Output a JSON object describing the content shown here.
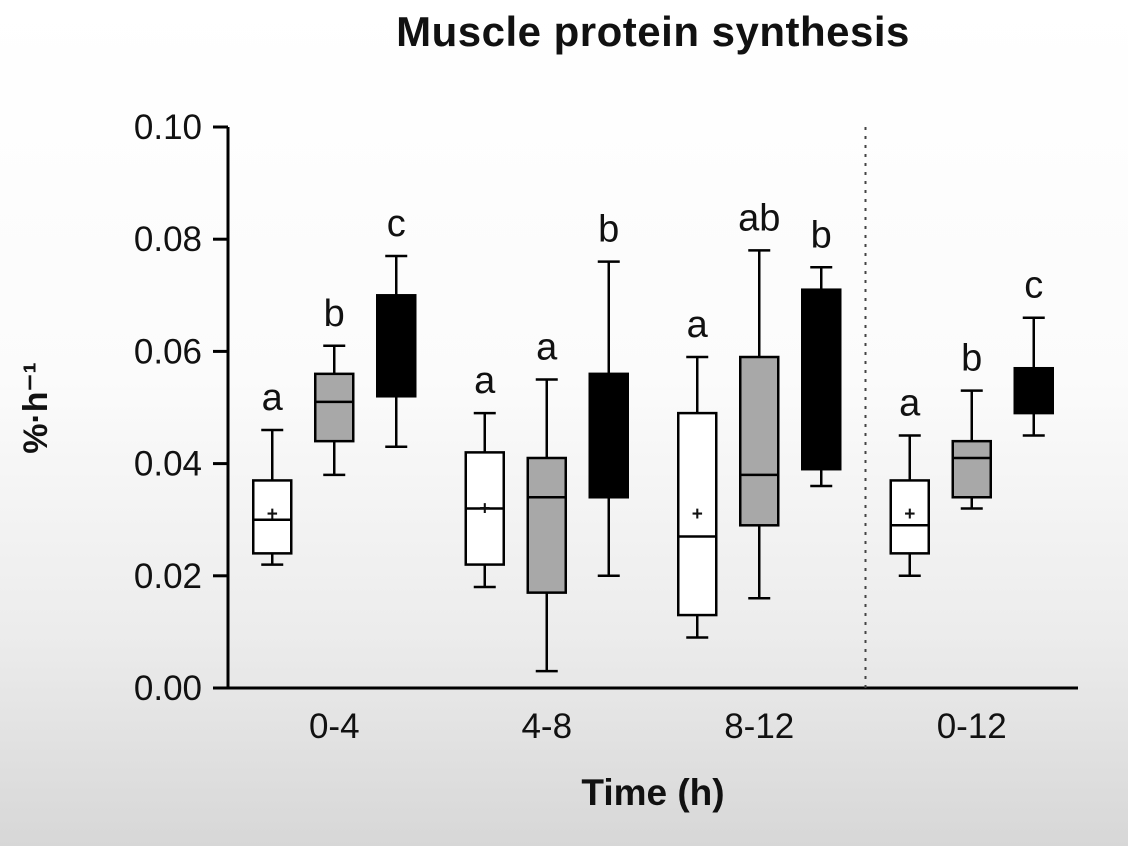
{
  "chart_data": {
    "type": "boxplot",
    "title": "Muscle protein synthesis",
    "xlabel": "Time (h)",
    "ylabel": "%·h⁻¹",
    "ylim": [
      0,
      0.1
    ],
    "yticks": [
      "0.00",
      "0.02",
      "0.04",
      "0.06",
      "0.08",
      "0.10"
    ],
    "categories": [
      "0-4",
      "4-8",
      "8-12",
      "0-12"
    ],
    "separator_after_category_index": 2,
    "grid": false,
    "legend": "none",
    "series": [
      {
        "name": "white-box",
        "fill": "#ffffff",
        "boxes": [
          {
            "category": "0-4",
            "low": 0.022,
            "q1": 0.024,
            "median": 0.03,
            "q3": 0.037,
            "high": 0.046,
            "mean": 0.031,
            "label": "a"
          },
          {
            "category": "4-8",
            "low": 0.018,
            "q1": 0.022,
            "median": 0.032,
            "q3": 0.042,
            "high": 0.049,
            "mean": 0.032,
            "label": "a"
          },
          {
            "category": "8-12",
            "low": 0.009,
            "q1": 0.013,
            "median": 0.027,
            "q3": 0.049,
            "high": 0.059,
            "mean": 0.031,
            "label": "a"
          },
          {
            "category": "0-12",
            "low": 0.02,
            "q1": 0.024,
            "median": 0.029,
            "q3": 0.037,
            "high": 0.045,
            "mean": 0.031,
            "label": "a"
          }
        ]
      },
      {
        "name": "gray-box",
        "fill": "#a8a8a8",
        "boxes": [
          {
            "category": "0-4",
            "low": 0.038,
            "q1": 0.044,
            "median": 0.051,
            "q3": 0.056,
            "high": 0.061,
            "mean": null,
            "label": "b"
          },
          {
            "category": "4-8",
            "low": 0.003,
            "q1": 0.017,
            "median": 0.034,
            "q3": 0.041,
            "high": 0.055,
            "mean": null,
            "label": "a"
          },
          {
            "category": "8-12",
            "low": 0.016,
            "q1": 0.029,
            "median": 0.038,
            "q3": 0.059,
            "high": 0.078,
            "mean": null,
            "label": "ab"
          },
          {
            "category": "0-12",
            "low": 0.032,
            "q1": 0.034,
            "median": 0.041,
            "q3": 0.044,
            "high": 0.053,
            "mean": null,
            "label": "b"
          }
        ]
      },
      {
        "name": "black-box",
        "fill": "#000000",
        "boxes": [
          {
            "category": "0-4",
            "low": 0.043,
            "q1": 0.052,
            "median": null,
            "q3": 0.07,
            "high": 0.077,
            "mean": null,
            "label": "c"
          },
          {
            "category": "4-8",
            "low": 0.02,
            "q1": 0.034,
            "median": null,
            "q3": 0.056,
            "high": 0.076,
            "mean": null,
            "label": "b"
          },
          {
            "category": "8-12",
            "low": 0.036,
            "q1": 0.039,
            "median": null,
            "q3": 0.071,
            "high": 0.075,
            "mean": null,
            "label": "b"
          },
          {
            "category": "0-12",
            "low": 0.045,
            "q1": 0.049,
            "median": null,
            "q3": 0.057,
            "high": 0.066,
            "mean": null,
            "label": "c"
          }
        ]
      }
    ]
  }
}
